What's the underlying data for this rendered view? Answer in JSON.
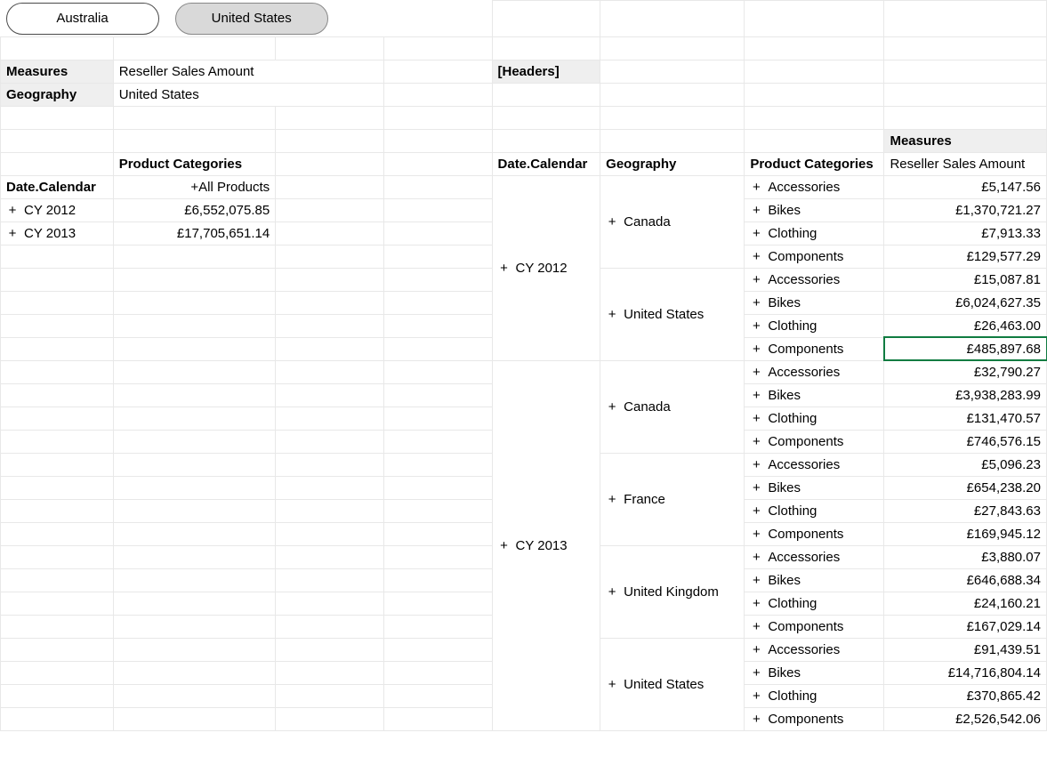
{
  "slicer": {
    "option1": "Australia",
    "option2": "United States",
    "selected_index": 1
  },
  "filters": {
    "measures_label": "Measures",
    "measures_value": "Reseller Sales Amount",
    "geography_label": "Geography",
    "geography_value": "United States",
    "headers_label": "[Headers]"
  },
  "left_pivot": {
    "col_a_header": "Date.Calendar",
    "col_b_header": "Product Categories",
    "col_b_sub": "+All Products",
    "rows": [
      {
        "year": "CY 2012",
        "value": "£6,552,075.85"
      },
      {
        "year": "CY 2013",
        "value": "£17,705,651.14"
      }
    ]
  },
  "right_pivot": {
    "measures_header": "Measures",
    "col_e_header": "Date.Calendar",
    "col_f_header": "Geography",
    "col_g_header": "Product Categories",
    "col_h_header": "Reseller Sales Amount",
    "years": [
      {
        "label": "CY 2012",
        "countries": [
          {
            "label": "Canada",
            "categories": [
              {
                "label": "Accessories",
                "value": "£5,147.56"
              },
              {
                "label": "Bikes",
                "value": "£1,370,721.27"
              },
              {
                "label": "Clothing",
                "value": "£7,913.33"
              },
              {
                "label": "Components",
                "value": "£129,577.29"
              }
            ]
          },
          {
            "label": "United States",
            "categories": [
              {
                "label": "Accessories",
                "value": "£15,087.81"
              },
              {
                "label": "Bikes",
                "value": "£6,024,627.35"
              },
              {
                "label": "Clothing",
                "value": "£26,463.00"
              },
              {
                "label": "Components",
                "value": "£485,897.68",
                "selected": true
              }
            ]
          }
        ]
      },
      {
        "label": "CY 2013",
        "countries": [
          {
            "label": "Canada",
            "categories": [
              {
                "label": "Accessories",
                "value": "£32,790.27"
              },
              {
                "label": "Bikes",
                "value": "£3,938,283.99"
              },
              {
                "label": "Clothing",
                "value": "£131,470.57"
              },
              {
                "label": "Components",
                "value": "£746,576.15"
              }
            ]
          },
          {
            "label": "France",
            "categories": [
              {
                "label": "Accessories",
                "value": "£5,096.23"
              },
              {
                "label": "Bikes",
                "value": "£654,238.20"
              },
              {
                "label": "Clothing",
                "value": "£27,843.63"
              },
              {
                "label": "Components",
                "value": "£169,945.12"
              }
            ]
          },
          {
            "label": "United Kingdom",
            "categories": [
              {
                "label": "Accessories",
                "value": "£3,880.07"
              },
              {
                "label": "Bikes",
                "value": "£646,688.34"
              },
              {
                "label": "Clothing",
                "value": "£24,160.21"
              },
              {
                "label": "Components",
                "value": "£167,029.14"
              }
            ]
          },
          {
            "label": "United States",
            "categories": [
              {
                "label": "Accessories",
                "value": "£91,439.51"
              },
              {
                "label": "Bikes",
                "value": "£14,716,804.14"
              },
              {
                "label": "Clothing",
                "value": "£370,865.42"
              },
              {
                "label": "Components",
                "value": "£2,526,542.06"
              }
            ]
          }
        ]
      }
    ]
  },
  "style": {
    "grid_color": "#e8e8e8",
    "header_bg": "#efefef",
    "selected_border": "#107c41",
    "slicer_selected_bg": "#d9d9d9"
  }
}
